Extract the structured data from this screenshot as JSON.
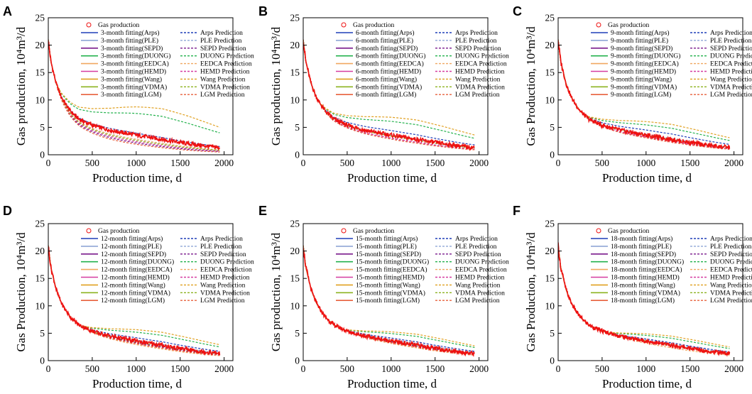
{
  "figure": {
    "series_styles": [
      {
        "method": "Arps",
        "color": "#1f3fb8"
      },
      {
        "method": "PLE",
        "color": "#8fa6d6"
      },
      {
        "method": "SEPD",
        "color": "#7a1a8c"
      },
      {
        "method": "DUONG",
        "color": "#22b14c"
      },
      {
        "method": "EEDCA",
        "color": "#f0a860"
      },
      {
        "method": "HEMD",
        "color": "#d63ca0"
      },
      {
        "method": "Wang",
        "color": "#e0a020"
      },
      {
        "method": "VDMA",
        "color": "#8db321"
      },
      {
        "method": "LGM",
        "color": "#e8603c"
      }
    ],
    "observed_color": "#ee1111"
  },
  "chart_data": [
    {
      "panel": "A",
      "type": "line",
      "xlabel": "Production time,   d",
      "ylabel": "Gas production,  10⁴m³/d",
      "xlim": [
        0,
        2100
      ],
      "ylim": [
        0,
        25
      ],
      "xticks": [
        "0",
        "500",
        "1000",
        "1500",
        "2000"
      ],
      "yticks": [
        "0",
        "5",
        "10",
        "15",
        "20",
        "25"
      ],
      "legend_observed": "Gas production",
      "fit_labels": [
        "3-month fitting(Arps)",
        "3-month fitting(PLE)",
        "3-month fitting(SEPD)",
        "3-month fitting(DUONG)",
        "3-month fitting(EEDCA)",
        "3-month fitting(HEMD)",
        "3-month fitting(Wang)",
        "3-month fitting(VDMA)",
        "3-month fitting(LGM)"
      ],
      "pred_labels": [
        "Arps Prediction",
        "PLE Prediction",
        "SEPD Prediction",
        "DUONG Prediction",
        "EEDCA Prediction",
        "HEMD Prediction",
        "Wang Prediction",
        "VDMA Prediction",
        "LGM Prediction"
      ],
      "fit_end_days": 90,
      "observed": {
        "x": [
          0,
          30,
          60,
          90,
          150,
          250,
          350,
          500,
          700,
          1000,
          1300,
          1600,
          1950
        ],
        "y": [
          21,
          17,
          15,
          13,
          10.5,
          8,
          6.5,
          5.4,
          4.5,
          3.6,
          2.8,
          2.0,
          1.3
        ]
      },
      "predictions_at_1950": {
        "Arps": 1.5,
        "PLE": 0.9,
        "SEPD": 0.6,
        "DUONG": 4.0,
        "EEDCA": 0.9,
        "HEMD": 0.7,
        "Wang": 5.0,
        "VDMA": 0.8,
        "LGM": 0.5
      }
    },
    {
      "panel": "B",
      "type": "line",
      "xlabel": "Production time,   d",
      "ylabel": "Gas production,  10⁴m³/d",
      "xlim": [
        0,
        2100
      ],
      "ylim": [
        0,
        25
      ],
      "xticks": [
        "0",
        "500",
        "1000",
        "1500",
        "2000"
      ],
      "yticks": [
        "0",
        "5",
        "10",
        "15",
        "20",
        "25"
      ],
      "legend_observed": "Gas production",
      "fit_labels": [
        "6-month fitting(Arps)",
        "6-month fitting(PLE)",
        "6-month fitting(SEPD)",
        "6-month fitting(DUONG)",
        "6-month fitting(EEDCA)",
        "6-month fitting(HEMD)",
        "6-month fitting(Wang)",
        "6-month fitting(VDMA)",
        "6-month fitting(LGM)"
      ],
      "pred_labels": [
        "Arps Prediction",
        "PLE Prediction",
        "SEPD Prediction",
        "DUONG Prediction",
        "EEDCA Prediction",
        "HEMD Prediction",
        "Wang Prediction",
        "VDMA Prediction",
        "LGM Prediction"
      ],
      "fit_end_days": 180,
      "observed": {
        "x": [
          0,
          30,
          60,
          90,
          150,
          250,
          350,
          500,
          700,
          1000,
          1300,
          1600,
          1950
        ],
        "y": [
          21,
          17,
          15,
          13,
          10.5,
          8,
          6.5,
          5.4,
          4.5,
          3.6,
          2.8,
          2.0,
          1.3
        ]
      },
      "predictions_at_1950": {
        "Arps": 1.8,
        "PLE": 1.3,
        "SEPD": 1.0,
        "DUONG": 3.0,
        "EEDCA": 1.2,
        "HEMD": 1.0,
        "Wang": 3.6,
        "VDMA": 1.2,
        "LGM": 0.9
      }
    },
    {
      "panel": "C",
      "type": "line",
      "xlabel": "Production time,   d",
      "ylabel": "Gas Production,  10⁴m³/d",
      "xlim": [
        0,
        2100
      ],
      "ylim": [
        0,
        25
      ],
      "xticks": [
        "0",
        "500",
        "1000",
        "1500",
        "2000"
      ],
      "yticks": [
        "0",
        "5",
        "10",
        "15",
        "20",
        "25"
      ],
      "legend_observed": "Gas production",
      "fit_labels": [
        "9-month fitting(Arps)",
        "9-month fitting(PLE)",
        "9-month fitting(SEPD)",
        "9-month fitting(DUONG)",
        "9-month fitting(EEDCA)",
        "9-month fitting(HEMD)",
        "9-month fitting(Wang)",
        "9-month fitting(VDMA)",
        "9-month fitting(LGM)"
      ],
      "pred_labels": [
        "Arps Prediction",
        "PLE Prediction",
        "SEPD Prediction",
        "DUONG Prediction",
        "EEDCA Prediction",
        "HEMD Prediction",
        "Wang Prediction",
        "VDMA Prediction",
        "LGM Prediction"
      ],
      "fit_end_days": 270,
      "observed": {
        "x": [
          0,
          30,
          60,
          90,
          150,
          250,
          350,
          500,
          700,
          1000,
          1300,
          1600,
          1950
        ],
        "y": [
          21,
          17,
          15,
          13,
          10.5,
          8,
          6.5,
          5.4,
          4.5,
          3.6,
          2.8,
          2.0,
          1.3
        ]
      },
      "predictions_at_1950": {
        "Arps": 1.9,
        "PLE": 1.4,
        "SEPD": 1.1,
        "DUONG": 2.6,
        "EEDCA": 1.3,
        "HEMD": 1.1,
        "Wang": 3.1,
        "VDMA": 1.3,
        "LGM": 1.0
      }
    },
    {
      "panel": "D",
      "type": "line",
      "xlabel": "Production time,   d",
      "ylabel": "Gas Production,  10⁴m³/d",
      "xlim": [
        0,
        2100
      ],
      "ylim": [
        0,
        25
      ],
      "xticks": [
        "0",
        "500",
        "1000",
        "1500",
        "2000"
      ],
      "yticks": [
        "0",
        "5",
        "10",
        "15",
        "20",
        "25"
      ],
      "legend_observed": "Gas production",
      "fit_labels": [
        "12-month fitting(Arps)",
        "12-month fitting(PLE)",
        "12-month fitting(SEPD)",
        "12-month fitting(DUONG)",
        "12-month fitting(EEDCA)",
        "12-month fitting(HEMD)",
        "12-month fitting(Wang)",
        "12-month fitting(VDMA)",
        "12-month fitting(LGM)"
      ],
      "pred_labels": [
        "Arps Prediction",
        "PLE Prediction",
        "SEPD Prediction",
        "DUONG Prediction",
        "EEDCA Prediction",
        "HEMD Prediction",
        "Wang Prediction",
        "VDMA Prediction",
        "LGM Prediction"
      ],
      "fit_end_days": 360,
      "observed": {
        "x": [
          0,
          30,
          60,
          90,
          150,
          250,
          350,
          500,
          700,
          1000,
          1300,
          1600,
          1950
        ],
        "y": [
          21,
          17,
          15,
          13,
          10.5,
          8,
          6.5,
          5.4,
          4.5,
          3.6,
          2.8,
          2.0,
          1.3
        ]
      },
      "predictions_at_1950": {
        "Arps": 1.7,
        "PLE": 1.4,
        "SEPD": 1.1,
        "DUONG": 2.5,
        "EEDCA": 0.9,
        "HEMD": 1.0,
        "Wang": 2.9,
        "VDMA": 1.2,
        "LGM": 1.0
      }
    },
    {
      "panel": "E",
      "type": "line",
      "xlabel": "Production time,   d",
      "ylabel": "Gas production,  10⁴m³/d",
      "xlim": [
        0,
        2100
      ],
      "ylim": [
        0,
        25
      ],
      "xticks": [
        "0",
        "500",
        "1000",
        "1500",
        "2000"
      ],
      "yticks": [
        "0",
        "5",
        "10",
        "15",
        "20",
        "25"
      ],
      "legend_observed": "Gas production",
      "fit_labels": [
        "15-month fitting(Arps)",
        "15-month fitting(PLE)",
        "15-month fitting(SEPD)",
        "15-month fitting(DUONG)",
        "15-month fitting(EEDCA)",
        "15-month fitting(HEMD)",
        "15-month fitting(Wang)",
        "15-month fitting(VDMA)",
        "15-month fitting(LGM)"
      ],
      "pred_labels": [
        "Arps Prediction",
        "PLE Prediction",
        "SEPD Prediction",
        "DUONG Prediction",
        "EEDCA Prediction",
        "HEMD Prediction",
        "Wang Prediction",
        "VDMA Prediction",
        "LGM Prediction"
      ],
      "fit_end_days": 450,
      "observed": {
        "x": [
          0,
          30,
          60,
          90,
          150,
          250,
          350,
          500,
          700,
          1000,
          1300,
          1600,
          1950
        ],
        "y": [
          21,
          17,
          15,
          13,
          10.5,
          8,
          6.5,
          5.4,
          4.5,
          3.6,
          2.8,
          2.0,
          1.3
        ]
      },
      "predictions_at_1950": {
        "Arps": 1.7,
        "PLE": 1.5,
        "SEPD": 1.2,
        "DUONG": 2.4,
        "EEDCA": 1.0,
        "HEMD": 1.1,
        "Wang": 2.7,
        "VDMA": 1.3,
        "LGM": 1.1
      }
    },
    {
      "panel": "F",
      "type": "line",
      "xlabel": "Production time,   d",
      "ylabel": "Gas Production,  10⁴m³/d",
      "xlim": [
        0,
        2100
      ],
      "ylim": [
        0,
        25
      ],
      "xticks": [
        "0",
        "500",
        "1000",
        "1500",
        "2000"
      ],
      "yticks": [
        "0",
        "5",
        "10",
        "15",
        "20",
        "25"
      ],
      "legend_observed": "Gas production",
      "fit_labels": [
        "18-month fitting(Arps)",
        "18-month fitting(PLE)",
        "18-month fitting(SEPD)",
        "18-month fitting(DUONG)",
        "18-month fitting(EEDCA)",
        "18-month fitting(HEMD)",
        "18-month fitting(Wang)",
        "18-month fitting(VDMA)",
        "18-month fitting(LGM)"
      ],
      "pred_labels": [
        "Arps Prediction",
        "PLE Prediction",
        "SEPD Prediction",
        "DUONG Prediction",
        "EEDCA Prediction",
        "HEMD Prediction",
        "Wang Prediction",
        "VDMA Prediction",
        "LGM Prediction"
      ],
      "fit_end_days": 540,
      "observed": {
        "x": [
          0,
          30,
          60,
          90,
          150,
          250,
          350,
          500,
          700,
          1000,
          1300,
          1600,
          1950
        ],
        "y": [
          21,
          17,
          15,
          13,
          10.5,
          8,
          6.5,
          5.4,
          4.5,
          3.6,
          2.8,
          2.0,
          1.3
        ]
      },
      "predictions_at_1950": {
        "Arps": 1.6,
        "PLE": 1.5,
        "SEPD": 1.3,
        "DUONG": 2.2,
        "EEDCA": 1.0,
        "HEMD": 1.2,
        "Wang": 2.5,
        "VDMA": 1.3,
        "LGM": 1.2
      }
    }
  ]
}
